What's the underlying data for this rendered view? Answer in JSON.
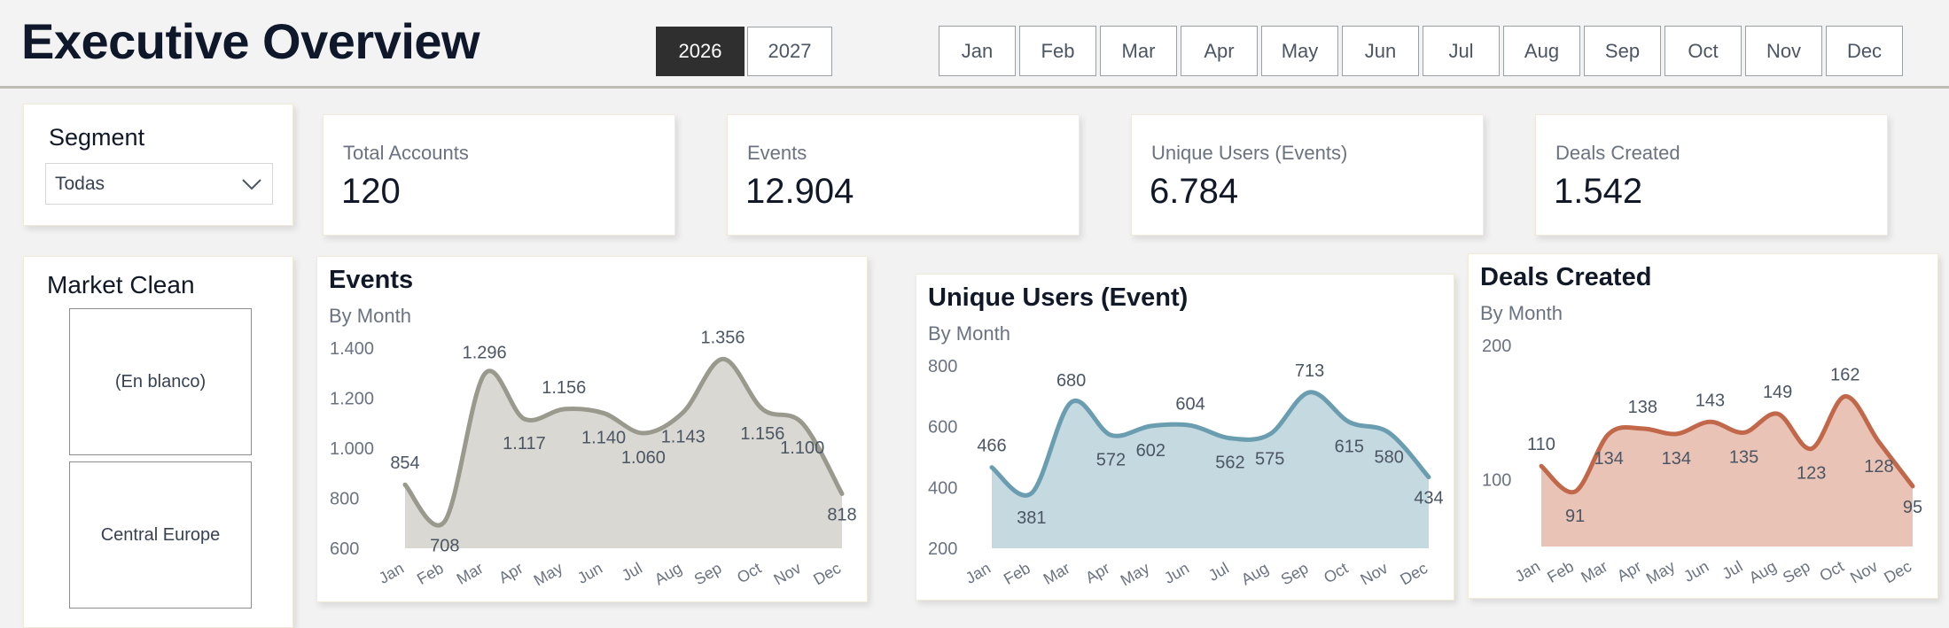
{
  "header": {
    "title": "Executive Overview",
    "years": [
      "2026",
      "2027"
    ],
    "selected_year": "2026",
    "months": [
      "Jan",
      "Feb",
      "Mar",
      "Apr",
      "May",
      "Jun",
      "Jul",
      "Aug",
      "Sep",
      "Oct",
      "Nov",
      "Dec"
    ]
  },
  "segment": {
    "label": "Segment",
    "value": "Todas"
  },
  "kpis": [
    {
      "label": "Total Accounts",
      "value": "120"
    },
    {
      "label": "Events",
      "value": "12.904"
    },
    {
      "label": "Unique Users (Events)",
      "value": "6.784"
    },
    {
      "label": "Deals Created",
      "value": "1.542"
    }
  ],
  "market": {
    "title": "Market Clean",
    "items": [
      "(En blanco)",
      "Central Europe"
    ]
  },
  "colors": {
    "events_line": "#9a998d",
    "events_fill": "#d9d8d3",
    "users_line": "#6a9db0",
    "users_fill": "#c4d9e0",
    "deals_line": "#c2684a",
    "deals_fill": "#e9c3b5",
    "active_button": "#2f2f2f"
  },
  "chart_data": [
    {
      "type": "area",
      "title": "Events",
      "subtitle": "By Month",
      "categories": [
        "Jan",
        "Feb",
        "Mar",
        "Apr",
        "May",
        "Jun",
        "Jul",
        "Aug",
        "Sep",
        "Oct",
        "Nov",
        "Dec"
      ],
      "values": [
        854,
        708,
        1296,
        1117,
        1156,
        1140,
        1060,
        1143,
        1356,
        1156,
        1100,
        818
      ],
      "value_labels": [
        "854",
        "708",
        "1.296",
        "1.117",
        "1.156",
        "1.140",
        "1.060",
        "1.143",
        "1.356",
        "1.156",
        "1.100",
        "818"
      ],
      "y_ticks": [
        "1.400",
        "1.200",
        "1.000",
        "800",
        "600"
      ],
      "ylim": [
        600,
        1400
      ],
      "grid": false
    },
    {
      "type": "area",
      "title": "Unique Users (Event)",
      "subtitle": "By Month",
      "categories": [
        "Jan",
        "Feb",
        "Mar",
        "Apr",
        "May",
        "Jun",
        "Jul",
        "Aug",
        "Sep",
        "Oct",
        "Nov",
        "Dec"
      ],
      "values": [
        466,
        381,
        680,
        572,
        602,
        604,
        562,
        575,
        713,
        615,
        580,
        434
      ],
      "value_labels": [
        "466",
        "381",
        "680",
        "572",
        "602",
        "604",
        "562",
        "575",
        "713",
        "615",
        "580",
        "434"
      ],
      "y_ticks": [
        "800",
        "600",
        "400",
        "200"
      ],
      "ylim": [
        200,
        800
      ],
      "grid": false
    },
    {
      "type": "area",
      "title": "Deals Created",
      "subtitle": "By Month",
      "categories": [
        "Jan",
        "Feb",
        "Mar",
        "Apr",
        "May",
        "Jun",
        "Jul",
        "Aug",
        "Sep",
        "Oct",
        "Nov",
        "Dec"
      ],
      "values": [
        110,
        91,
        134,
        138,
        134,
        143,
        135,
        149,
        123,
        162,
        128,
        95
      ],
      "value_labels": [
        "110",
        "91",
        "134",
        "138",
        "134",
        "143",
        "135",
        "149",
        "123",
        "162",
        "128",
        "95"
      ],
      "y_ticks": [
        "200",
        "100"
      ],
      "ylim": [
        50,
        200
      ],
      "grid": false
    }
  ]
}
